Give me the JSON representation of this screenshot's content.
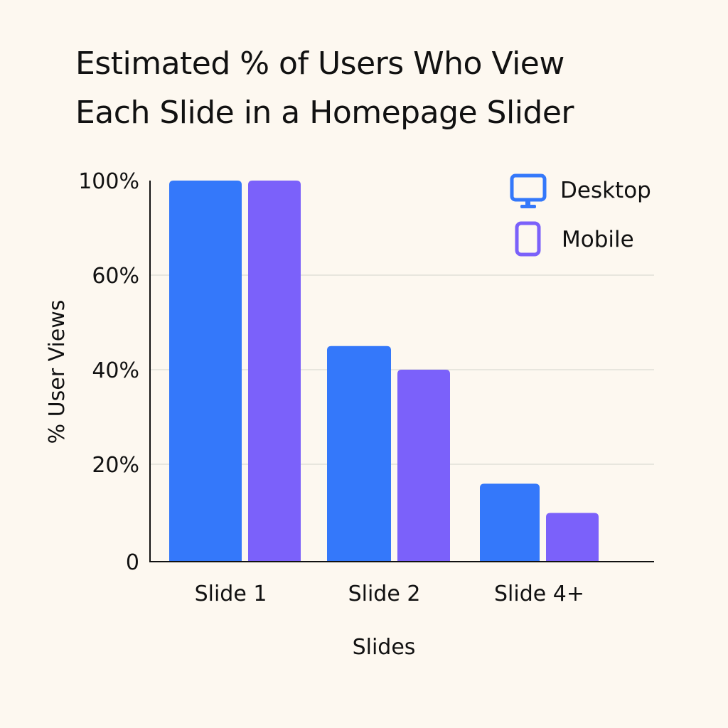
{
  "title_lines": [
    "Estimated % of Users Who View",
    "Each Slide in a Homepage Slider"
  ],
  "colors": {
    "background": "#fdf8f0",
    "desktop": "#3478fa",
    "mobile": "#7b61fa",
    "axis": "#111111",
    "grid": "#d4d4cc"
  },
  "legend": {
    "placement": "top-right",
    "items": [
      {
        "label": "Desktop",
        "icon": "monitor-icon"
      },
      {
        "label": "Mobile",
        "icon": "smartphone-icon"
      }
    ]
  },
  "chart_data": {
    "type": "bar",
    "title": "Estimated % of Users Who View Each Slide in a Homepage Slider",
    "xlabel": "Slides",
    "ylabel": "% User Views",
    "categories": [
      "Slide 1",
      "Slide 2",
      "Slide 4+"
    ],
    "series": [
      {
        "name": "Desktop",
        "values": [
          100,
          45,
          16
        ]
      },
      {
        "name": "Mobile",
        "values": [
          100,
          40,
          10
        ]
      }
    ],
    "yticks": [
      0,
      20,
      40,
      60,
      100
    ],
    "ytick_labels": [
      "0",
      "20%",
      "40%",
      "60%",
      "100%"
    ],
    "ylim": [
      0,
      100
    ],
    "grid": true
  }
}
